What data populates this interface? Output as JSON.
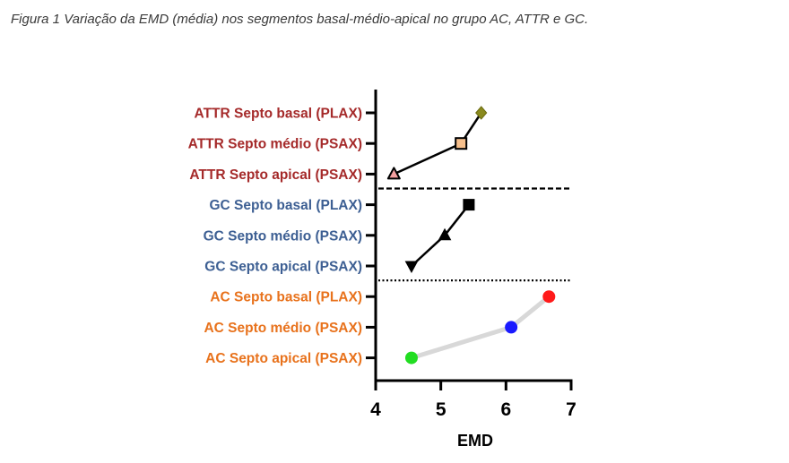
{
  "caption": "Figura 1 Variação da EMD (média) nos segmentos basal-médio-apical no grupo AC, ATTR e GC.",
  "chart_data": {
    "type": "line",
    "xlabel": "EMD",
    "xlim": [
      4,
      7
    ],
    "xticks": [
      4,
      5,
      6,
      7
    ],
    "tick_labels": [
      "4",
      "5",
      "6",
      "7"
    ],
    "categories": [
      "ATTR Septo basal (PLAX)",
      "ATTR Septo médio (PSAX)",
      "ATTR Septo apical (PSAX)",
      "GC Septo basal (PLAX)",
      "GC Septo médio (PSAX)",
      "GC Septo apical (PSAX)",
      "AC Septo basal (PLAX)",
      "AC Septo médio (PSAX)",
      "AC Septo apical (PSAX)"
    ],
    "category_colors": [
      "#a52a2a",
      "#a52a2a",
      "#a52a2a",
      "#3d5f93",
      "#3d5f93",
      "#3d5f93",
      "#e8721c",
      "#e8721c",
      "#e8721c"
    ],
    "series": [
      {
        "group": "ATTR",
        "line_color": "#000000",
        "points": [
          {
            "category": "ATTR Septo basal (PLAX)",
            "x": 5.62,
            "marker": "diamond",
            "fill": "#8a8a1e",
            "stroke": "#6b6b10"
          },
          {
            "category": "ATTR Septo médio (PSAX)",
            "x": 5.31,
            "marker": "square-open",
            "fill": "#f8c08c",
            "stroke": "#000000"
          },
          {
            "category": "ATTR Septo apical (PSAX)",
            "x": 4.28,
            "marker": "triangle-up-open",
            "fill": "#f4a0a0",
            "stroke": "#000000"
          }
        ]
      },
      {
        "group": "GC",
        "line_color": "#000000",
        "points": [
          {
            "category": "GC Septo basal (PLAX)",
            "x": 5.43,
            "marker": "square",
            "fill": "#000000",
            "stroke": "#000000"
          },
          {
            "category": "GC Septo médio (PSAX)",
            "x": 5.06,
            "marker": "triangle-up",
            "fill": "#000000",
            "stroke": "#000000"
          },
          {
            "category": "GC Septo apical (PSAX)",
            "x": 4.55,
            "marker": "triangle-down",
            "fill": "#000000",
            "stroke": "#000000"
          }
        ]
      },
      {
        "group": "AC",
        "line_color": "#d8d8d8",
        "points": [
          {
            "category": "AC Septo basal (PLAX)",
            "x": 6.66,
            "marker": "circle",
            "fill": "#ff1a1a",
            "stroke": "#ff1a1a"
          },
          {
            "category": "AC Septo médio (PSAX)",
            "x": 6.08,
            "marker": "circle",
            "fill": "#1a1aff",
            "stroke": "#1a1aff"
          },
          {
            "category": "AC Septo apical (PSAX)",
            "x": 4.55,
            "marker": "circle",
            "fill": "#22dd22",
            "stroke": "#22dd22"
          }
        ]
      }
    ],
    "separators": [
      {
        "after": "ATTR Septo apical (PSAX)",
        "style": "dashed"
      },
      {
        "after": "GC Septo apical (PSAX)",
        "style": "dotted"
      }
    ],
    "grid": false,
    "legend": "none"
  }
}
